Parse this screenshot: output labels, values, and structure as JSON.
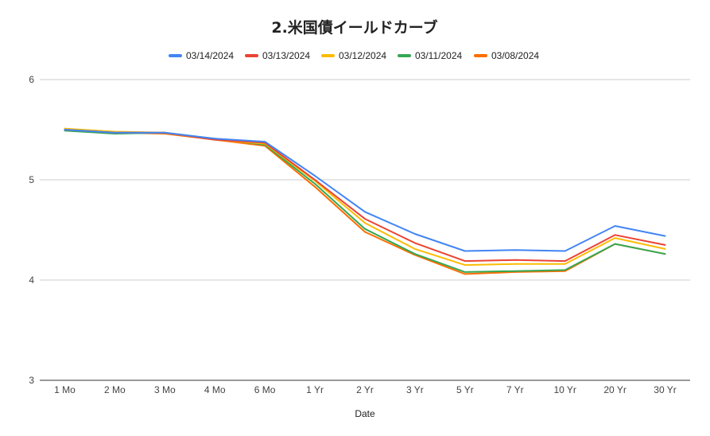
{
  "chart_data": {
    "type": "line",
    "title": "2.米国債イールドカーブ",
    "xlabel": "Date",
    "ylabel": "",
    "ylim": [
      3,
      6
    ],
    "yticks": [
      3,
      4,
      5,
      6
    ],
    "grid": true,
    "legend_position": "top",
    "categories": [
      "1 Mo",
      "2 Mo",
      "3 Mo",
      "4 Mo",
      "6 Mo",
      "1 Yr",
      "2 Yr",
      "3 Yr",
      "5 Yr",
      "7 Yr",
      "10 Yr",
      "20 Yr",
      "30 Yr"
    ],
    "series": [
      {
        "name": "03/14/2024",
        "color": "#4285F4",
        "values": [
          5.5,
          5.47,
          5.47,
          5.41,
          5.38,
          5.04,
          4.68,
          4.46,
          4.29,
          4.3,
          4.29,
          4.54,
          4.44
        ]
      },
      {
        "name": "03/13/2024",
        "color": "#EA4335",
        "values": [
          5.5,
          5.47,
          5.47,
          5.4,
          5.37,
          5.0,
          4.61,
          4.37,
          4.19,
          4.2,
          4.19,
          4.45,
          4.35
        ]
      },
      {
        "name": "03/12/2024",
        "color": "#FBBC04",
        "values": [
          5.51,
          5.48,
          5.47,
          5.4,
          5.36,
          4.99,
          4.57,
          4.31,
          4.15,
          4.16,
          4.16,
          4.42,
          4.31
        ]
      },
      {
        "name": "03/11/2024",
        "color": "#34A853",
        "values": [
          5.49,
          5.46,
          5.47,
          5.41,
          5.35,
          4.96,
          4.51,
          4.26,
          4.08,
          4.09,
          4.1,
          4.36,
          4.26
        ]
      },
      {
        "name": "03/08/2024",
        "color": "#FF6D01",
        "values": [
          5.51,
          5.47,
          5.46,
          5.4,
          5.34,
          4.93,
          4.48,
          4.25,
          4.06,
          4.08,
          4.09,
          4.36,
          4.26
        ]
      }
    ]
  }
}
